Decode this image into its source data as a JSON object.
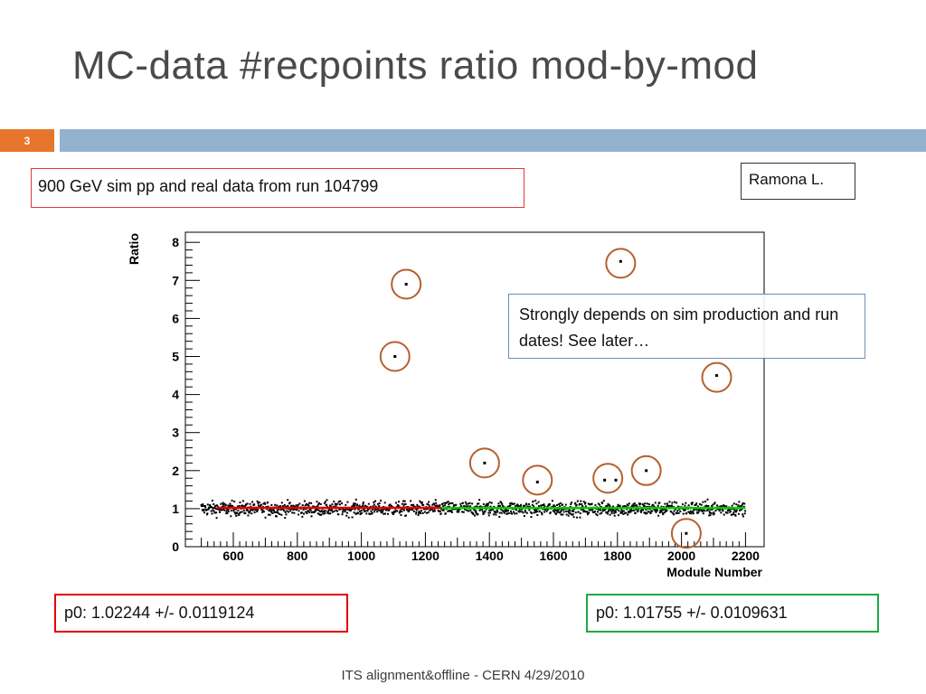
{
  "slide": {
    "title": "MC-data #recpoints ratio mod-by-mod",
    "number": "3",
    "subtitle_box": "900 GeV sim pp and real data from run 104799",
    "author_box": "Ramona L.",
    "note_box": "Strongly depends on sim production and run dates! See later…",
    "footer": "ITS alignment&offline - CERN 4/29/2010",
    "accent_color": "#e7752b",
    "bar_color": "#93b2cf"
  },
  "chart_data": {
    "type": "scatter",
    "xlabel": "Module Number",
    "ylabel": "Ratio",
    "xlim": [
      500,
      2200
    ],
    "ylim": [
      0,
      8.2
    ],
    "x_ticks": [
      600,
      800,
      1000,
      1200,
      1400,
      1600,
      1800,
      2000,
      2200
    ],
    "y_ticks": [
      0,
      1,
      2,
      3,
      4,
      5,
      6,
      7,
      8
    ],
    "grid": false,
    "series": [
      {
        "x_range": [
          500,
          2200
        ],
        "typical_y": 1.0,
        "y_spread": [
          0.65,
          1.4
        ]
      }
    ],
    "outliers": [
      {
        "x": 1105,
        "y": 5.0
      },
      {
        "x": 1140,
        "y": 6.9
      },
      {
        "x": 1385,
        "y": 2.2
      },
      {
        "x": 1550,
        "y": 1.7
      },
      {
        "x": 1760,
        "y": 1.75
      },
      {
        "x": 1795,
        "y": 1.75
      },
      {
        "x": 1810,
        "y": 7.5
      },
      {
        "x": 1890,
        "y": 2.0
      },
      {
        "x": 2015,
        "y": 0.35
      },
      {
        "x": 2110,
        "y": 4.5
      }
    ],
    "fits": [
      {
        "label": "p0: 1.02244 +/- 0.0119124",
        "value": 1.02244,
        "x_range": [
          500,
          1250
        ],
        "color": "#e00000"
      },
      {
        "label": "p0: 1.01755 +/- 0.0109631",
        "value": 1.01755,
        "x_range": [
          1250,
          2200
        ],
        "color": "#00cc00"
      }
    ],
    "circle_color": "#b5602e"
  }
}
